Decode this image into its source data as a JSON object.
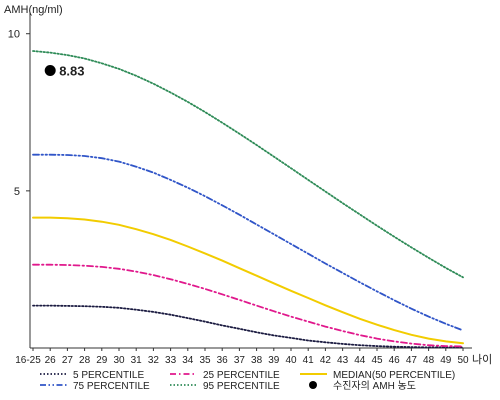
{
  "chart_data": {
    "type": "line",
    "ylabel": "AMH(ng/ml)",
    "xlabel": "나이",
    "x": [
      "16-25",
      "26",
      "27",
      "28",
      "29",
      "30",
      "31",
      "32",
      "33",
      "34",
      "35",
      "36",
      "37",
      "38",
      "39",
      "40",
      "41",
      "42",
      "43",
      "44",
      "45",
      "46",
      "47",
      "48",
      "49",
      "50"
    ],
    "ylim": [
      0,
      10.5
    ],
    "yticks": [
      5,
      10
    ],
    "grid": false,
    "legend_position": "bottom",
    "series": [
      {
        "name": "5 PERCENTILE",
        "color": "#1a1a40",
        "dash": "dotted",
        "values": [
          1.35,
          1.35,
          1.34,
          1.33,
          1.31,
          1.28,
          1.22,
          1.15,
          1.06,
          0.95,
          0.84,
          0.72,
          0.61,
          0.5,
          0.4,
          0.32,
          0.24,
          0.18,
          0.13,
          0.09,
          0.06,
          0.04,
          0.03,
          0.02,
          0.02,
          0.02
        ]
      },
      {
        "name": "25 PERCENTILE",
        "color": "#e0188c",
        "dash": "dashdot",
        "values": [
          2.65,
          2.65,
          2.64,
          2.62,
          2.58,
          2.52,
          2.43,
          2.32,
          2.19,
          2.04,
          1.88,
          1.71,
          1.53,
          1.35,
          1.17,
          1.0,
          0.84,
          0.68,
          0.54,
          0.41,
          0.3,
          0.21,
          0.14,
          0.09,
          0.06,
          0.05
        ]
      },
      {
        "name": "MEDIAN(50 PERCENTILE)",
        "color": "#f2cc00",
        "dash": "solid",
        "values": [
          4.15,
          4.15,
          4.13,
          4.09,
          4.02,
          3.92,
          3.78,
          3.62,
          3.44,
          3.23,
          3.01,
          2.78,
          2.54,
          2.3,
          2.06,
          1.82,
          1.59,
          1.36,
          1.14,
          0.93,
          0.74,
          0.57,
          0.42,
          0.3,
          0.21,
          0.15
        ]
      },
      {
        "name": "75 PERCENTILE",
        "color": "#3055c8",
        "dash": "dashdotdot",
        "values": [
          6.15,
          6.15,
          6.14,
          6.11,
          6.04,
          5.93,
          5.77,
          5.58,
          5.35,
          5.1,
          4.83,
          4.54,
          4.24,
          3.93,
          3.62,
          3.31,
          3.0,
          2.69,
          2.39,
          2.09,
          1.8,
          1.52,
          1.25,
          1.0,
          0.77,
          0.56
        ]
      },
      {
        "name": "95 PERCENTILE",
        "color": "#2e8b57",
        "dash": "dotted",
        "values": [
          9.45,
          9.4,
          9.32,
          9.21,
          9.06,
          8.88,
          8.66,
          8.41,
          8.13,
          7.83,
          7.51,
          7.17,
          6.82,
          6.46,
          6.09,
          5.72,
          5.35,
          4.98,
          4.61,
          4.25,
          3.89,
          3.54,
          3.2,
          2.87,
          2.55,
          2.25
        ]
      }
    ],
    "points": [
      {
        "name": "수진자의 AMH 농도",
        "x": "26",
        "y": 8.83,
        "label": "8.83",
        "color": "#000000"
      }
    ]
  }
}
